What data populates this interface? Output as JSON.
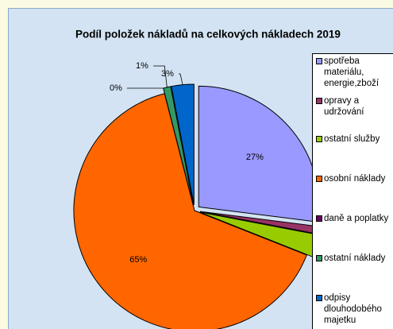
{
  "chart_data": {
    "type": "pie",
    "title": "Podíl položek nákladů na celkových nákladech 2019",
    "categories": [
      "spotřeba materiálu, energie,zboží",
      "opravy a udržování",
      "ostatní služby",
      "osobní náklady",
      "daně a poplatky",
      "ostatní náklady",
      "odpisy dlouhodobého majetku"
    ],
    "values": [
      27,
      1,
      3,
      65,
      0,
      1,
      3
    ],
    "value_labels": [
      "27%",
      "1%",
      "3%",
      "65%",
      "0%",
      "1%",
      "3%"
    ],
    "colors": [
      "#9999ff",
      "#993366",
      "#99cc00",
      "#ff6600",
      "#660066",
      "#339966",
      "#0066cc"
    ],
    "legend": "right"
  }
}
